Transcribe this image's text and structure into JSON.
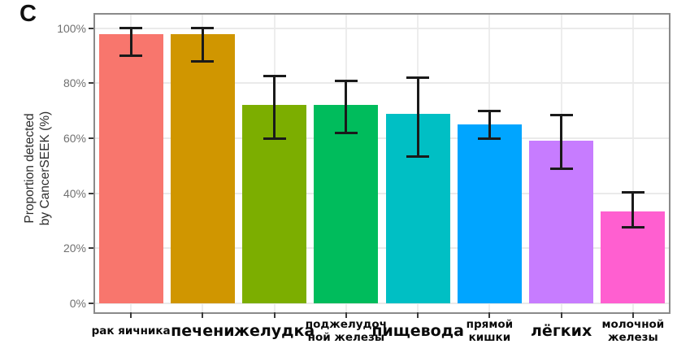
{
  "figure": {
    "panel_label": "C"
  },
  "y_axis": {
    "title_lines": [
      "Proportion detected",
      "by CancerSEEK (%)"
    ],
    "ticks": [
      {
        "label": "100%",
        "value": 100
      },
      {
        "label": "80%",
        "value": 80
      },
      {
        "label": "60%",
        "value": 60
      },
      {
        "label": "40%",
        "value": 40
      },
      {
        "label": "20%",
        "value": 20
      },
      {
        "label": "0%",
        "value": 0
      }
    ]
  },
  "chart_data": {
    "type": "bar",
    "title": "",
    "xlabel": "",
    "ylabel": "Proportion detected by CancerSEEK (%)",
    "ylim": [
      0,
      100
    ],
    "grid": true,
    "legend": false,
    "categories": [
      "рак яичника",
      "печени",
      "желудка",
      "поджелудочной железы",
      "пищевода",
      "прямой кишки",
      "лёгких",
      "молочной железы"
    ],
    "x_tick_label_lines": [
      [
        "рак яичника"
      ],
      [
        "печени"
      ],
      [
        "желудка"
      ],
      [
        "поджелудоч",
        "ной железы"
      ],
      [
        "пищевода"
      ],
      [
        "прямой",
        "кишки"
      ],
      [
        "лёгких"
      ],
      [
        "молочной",
        "железы"
      ]
    ],
    "x_tick_label_size": [
      "small",
      "large",
      "large",
      "small",
      "large",
      "small",
      "large",
      "small"
    ],
    "series": [
      {
        "name": "Proportion detected by CancerSEEK (%)",
        "values": [
          98,
          98,
          72,
          72,
          69,
          65,
          59,
          33.5
        ]
      }
    ],
    "error_bars": {
      "low": [
        90,
        88,
        60,
        62,
        53.5,
        60,
        49,
        27.5
      ],
      "high": [
        100,
        100,
        82.5,
        81,
        82,
        70,
        68.5,
        40.5
      ]
    },
    "bar_colors": [
      "#F8766D",
      "#D09600",
      "#7CAE00",
      "#00BC5C",
      "#00BFC4",
      "#00A5FF",
      "#C77CFF",
      "#FF5FD0"
    ],
    "style_colors": {
      "error_bar": "#1a1a1a",
      "panel_border": "#8a8a8a",
      "gridline": "#eaeaea",
      "y_tick_text": "#707070",
      "x_tick_text": "#0a0a0a"
    }
  }
}
